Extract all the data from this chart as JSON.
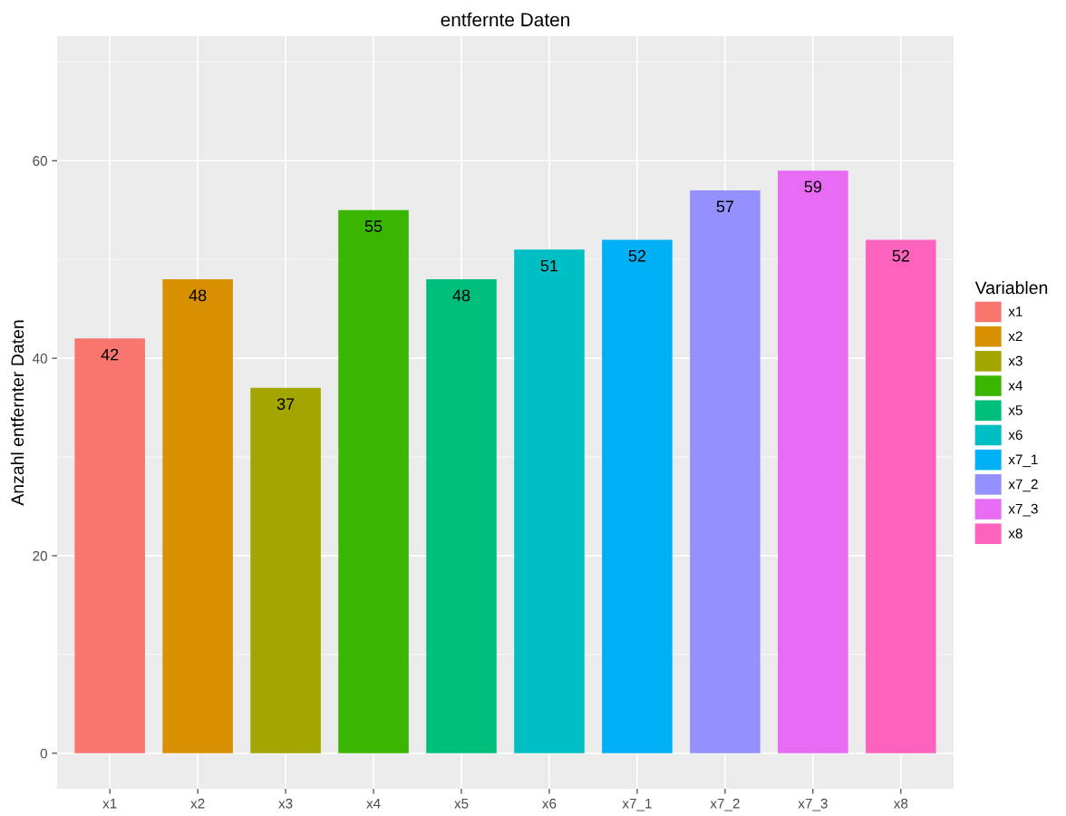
{
  "chart_data": {
    "type": "bar",
    "title": "entfernte Daten",
    "ylabel": "Anzahl entfernter Daten",
    "legend_title": "Variablen",
    "categories": [
      "x1",
      "x2",
      "x3",
      "x4",
      "x5",
      "x6",
      "x7_1",
      "x7_2",
      "x7_3",
      "x8"
    ],
    "series": [
      {
        "name": "x1",
        "color": "#f8766d",
        "values": [
          42,
          null,
          null,
          null,
          null,
          null,
          null,
          null,
          null,
          null
        ]
      },
      {
        "name": "x2",
        "color": "#d89000",
        "values": [
          null,
          48,
          null,
          null,
          null,
          null,
          null,
          null,
          null,
          null
        ]
      },
      {
        "name": "x3",
        "color": "#a3a500",
        "values": [
          null,
          null,
          37,
          null,
          null,
          null,
          null,
          null,
          null,
          null
        ]
      },
      {
        "name": "x4",
        "color": "#39b600",
        "values": [
          null,
          null,
          null,
          55,
          null,
          null,
          null,
          null,
          null,
          null
        ]
      },
      {
        "name": "x5",
        "color": "#00bf7d",
        "values": [
          null,
          null,
          null,
          null,
          48,
          null,
          null,
          null,
          null,
          null
        ]
      },
      {
        "name": "x6",
        "color": "#00bfc4",
        "values": [
          null,
          null,
          null,
          null,
          null,
          51,
          null,
          null,
          null,
          null
        ]
      },
      {
        "name": "x7_1",
        "color": "#00b0f6",
        "values": [
          null,
          null,
          null,
          null,
          null,
          null,
          52,
          null,
          null,
          null
        ]
      },
      {
        "name": "x7_2",
        "color": "#9590ff",
        "values": [
          null,
          null,
          null,
          null,
          null,
          null,
          null,
          57,
          null,
          null
        ]
      },
      {
        "name": "x7_3",
        "color": "#e76bf3",
        "values": [
          null,
          null,
          null,
          null,
          null,
          null,
          null,
          null,
          59,
          null
        ]
      },
      {
        "name": "x8",
        "color": "#ff62bc",
        "values": [
          null,
          null,
          null,
          null,
          null,
          null,
          null,
          null,
          null,
          52
        ]
      }
    ],
    "ylim": [
      -3.6,
      72.6
    ],
    "yticks": [
      0,
      20,
      40,
      60
    ],
    "grid": true,
    "legend": "right",
    "data_labels": true
  }
}
